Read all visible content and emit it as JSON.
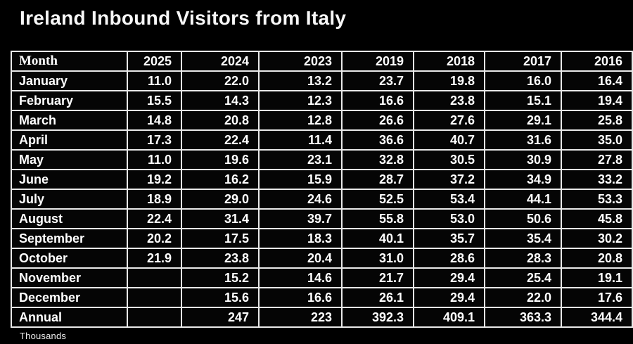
{
  "title": "Ireland Inbound Visitors from Italy",
  "footnote": "Thousands",
  "colors": {
    "background": "#000000",
    "text": "#ffffff",
    "grid": "#e9e9e9"
  },
  "chart_data": {
    "type": "table",
    "title": "Ireland Inbound Visitors from Italy",
    "unit": "Thousands",
    "columns": [
      "Month",
      "2025",
      "2024",
      "2023",
      "2019",
      "2018",
      "2017",
      "2016"
    ],
    "rows": [
      {
        "month": "January",
        "values": [
          "11.0",
          "22.0",
          "13.2",
          "23.7",
          "19.8",
          "16.0",
          "16.4"
        ]
      },
      {
        "month": "February",
        "values": [
          "15.5",
          "14.3",
          "12.3",
          "16.6",
          "23.8",
          "15.1",
          "19.4"
        ]
      },
      {
        "month": "March",
        "values": [
          "14.8",
          "20.8",
          "12.8",
          "26.6",
          "27.6",
          "29.1",
          "25.8"
        ]
      },
      {
        "month": "April",
        "values": [
          "17.3",
          "22.4",
          "11.4",
          "36.6",
          "40.7",
          "31.6",
          "35.0"
        ]
      },
      {
        "month": "May",
        "values": [
          "11.0",
          "19.6",
          "23.1",
          "32.8",
          "30.5",
          "30.9",
          "27.8"
        ]
      },
      {
        "month": "June",
        "values": [
          "19.2",
          "16.2",
          "15.9",
          "28.7",
          "37.2",
          "34.9",
          "33.2"
        ]
      },
      {
        "month": "July",
        "values": [
          "18.9",
          "29.0",
          "24.6",
          "52.5",
          "53.4",
          "44.1",
          "53.3"
        ]
      },
      {
        "month": "August",
        "values": [
          "22.4",
          "31.4",
          "39.7",
          "55.8",
          "53.0",
          "50.6",
          "45.8"
        ]
      },
      {
        "month": "September",
        "values": [
          "20.2",
          "17.5",
          "18.3",
          "40.1",
          "35.7",
          "35.4",
          "30.2"
        ]
      },
      {
        "month": "October",
        "values": [
          "21.9",
          "23.8",
          "20.4",
          "31.0",
          "28.6",
          "28.3",
          "20.8"
        ]
      },
      {
        "month": "November",
        "values": [
          "",
          "15.2",
          "14.6",
          "21.7",
          "29.4",
          "25.4",
          "19.1"
        ]
      },
      {
        "month": "December",
        "values": [
          "",
          "15.6",
          "16.6",
          "26.1",
          "29.4",
          "22.0",
          "17.6"
        ]
      },
      {
        "month": "Annual",
        "values": [
          "",
          "247",
          "223",
          "392.3",
          "409.1",
          "363.3",
          "344.4"
        ]
      }
    ]
  }
}
